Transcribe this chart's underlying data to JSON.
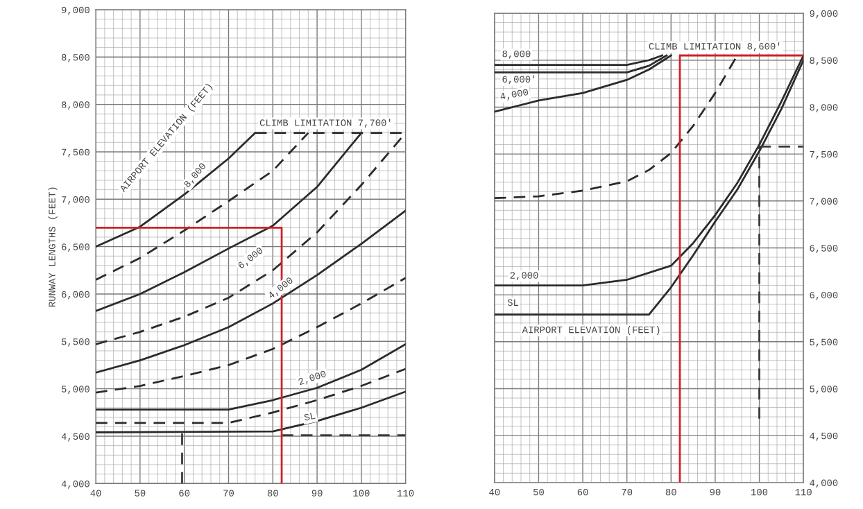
{
  "chart_data": [
    {
      "type": "line",
      "ylabel": "RUNWAY LENGTHS (FEET)",
      "xlim": [
        40,
        110
      ],
      "ylim": [
        4000,
        9000
      ],
      "xticks": [
        40,
        50,
        60,
        70,
        80,
        90,
        100,
        110
      ],
      "yticks": [
        {
          "value": 4000,
          "label": "4,000"
        },
        {
          "value": 4500,
          "label": "4,500"
        },
        {
          "value": 5000,
          "label": "5,000"
        },
        {
          "value": 5500,
          "label": "5,500"
        },
        {
          "value": 6000,
          "label": "6,000"
        },
        {
          "value": 6500,
          "label": "6,500"
        },
        {
          "value": 7000,
          "label": "7,000"
        },
        {
          "value": 7500,
          "label": "7,500"
        },
        {
          "value": 8000,
          "label": "8,000"
        },
        {
          "value": 8500,
          "label": "8,500"
        },
        {
          "value": 9000,
          "label": "9,000"
        }
      ],
      "grid": true,
      "series": [
        {
          "color": "#2b2b2b",
          "line_style": "solid",
          "x": [
            40,
            50,
            60,
            70,
            76
          ],
          "values": [
            6500,
            6710,
            7050,
            7430,
            7700
          ]
        },
        {
          "color": "#2b2b2b",
          "line_style": "dashed",
          "x": [
            76,
            110
          ],
          "values": [
            7700,
            7700
          ]
        },
        {
          "color": "#2b2b2b",
          "line_style": "dashed",
          "x": [
            40,
            50,
            60,
            70,
            80,
            88
          ],
          "values": [
            6150,
            6380,
            6670,
            6980,
            7300,
            7700
          ]
        },
        {
          "color": "#2b2b2b",
          "line_style": "solid",
          "x": [
            40,
            50,
            60,
            70,
            80,
            90,
            100
          ],
          "values": [
            5820,
            6000,
            6230,
            6480,
            6720,
            7130,
            7700
          ]
        },
        {
          "color": "#2b2b2b",
          "line_style": "dashed",
          "x": [
            40,
            50,
            60,
            70,
            80,
            90,
            100,
            110
          ],
          "values": [
            5470,
            5600,
            5760,
            5960,
            6250,
            6650,
            7150,
            7700
          ]
        },
        {
          "color": "#2b2b2b",
          "line_style": "solid",
          "x": [
            40,
            50,
            60,
            70,
            80,
            90,
            100,
            110
          ],
          "values": [
            5170,
            5300,
            5460,
            5650,
            5900,
            6200,
            6530,
            6880
          ]
        },
        {
          "color": "#2b2b2b",
          "line_style": "dashed",
          "x": [
            40,
            50,
            60,
            70,
            80,
            90,
            100,
            110
          ],
          "values": [
            4960,
            5030,
            5135,
            5250,
            5420,
            5650,
            5900,
            6170
          ]
        },
        {
          "color": "#2b2b2b",
          "line_style": "solid",
          "x": [
            40,
            70,
            80,
            90,
            100,
            110
          ],
          "values": [
            4780,
            4780,
            4880,
            5010,
            5200,
            5470
          ]
        },
        {
          "color": "#2b2b2b",
          "line_style": "dashed",
          "x": [
            40,
            70,
            80,
            90,
            100,
            110
          ],
          "values": [
            4640,
            4640,
            4750,
            4880,
            5030,
            5210
          ]
        },
        {
          "color": "#2b2b2b",
          "line_style": "solid",
          "x": [
            40,
            80,
            90,
            100,
            110
          ],
          "values": [
            4540,
            4550,
            4660,
            4800,
            4970
          ]
        },
        {
          "color": "#3a3a3a",
          "line_style": "dashed",
          "x": [
            59.5,
            59.5
          ],
          "values": [
            4000,
            4540
          ]
        },
        {
          "color": "#3a3a3a",
          "line_style": "dashed",
          "x": [
            82,
            110
          ],
          "values": [
            4510,
            4510
          ]
        },
        {
          "color": "#d0202a",
          "line_style": "solid",
          "x": [
            40,
            82,
            82
          ],
          "values": [
            6700,
            6700,
            4000
          ]
        }
      ],
      "annotations": [
        "AIRPORT ELEVATION (FEET)",
        "CLIMB LIMITATION 7,700'",
        "8,000",
        "6,000",
        "4,000",
        "2,000",
        "SL"
      ]
    },
    {
      "type": "line",
      "xlim": [
        40,
        110
      ],
      "ylim": [
        4000,
        9000
      ],
      "xticks": [
        40,
        50,
        60,
        70,
        80,
        90,
        100,
        110
      ],
      "yticks": [
        {
          "value": 4000,
          "label": "4,000"
        },
        {
          "value": 4500,
          "label": "4,500"
        },
        {
          "value": 5000,
          "label": "5,000"
        },
        {
          "value": 5500,
          "label": "5,500"
        },
        {
          "value": 6000,
          "label": "6,000"
        },
        {
          "value": 6500,
          "label": "6,500"
        },
        {
          "value": 7000,
          "label": "7,000"
        },
        {
          "value": 7500,
          "label": "7,500"
        },
        {
          "value": 8000,
          "label": "8,000"
        },
        {
          "value": 8500,
          "label": "8,500"
        },
        {
          "value": 9000,
          "label": "9,000"
        }
      ],
      "grid": true,
      "series": [
        {
          "color": "#2b2b2b",
          "line_style": "solid",
          "x": [
            40,
            70,
            75,
            78
          ],
          "values": [
            8450,
            8450,
            8500,
            8550
          ]
        },
        {
          "color": "#2b2b2b",
          "line_style": "solid",
          "x": [
            40,
            70,
            75,
            79
          ],
          "values": [
            8370,
            8370,
            8440,
            8550
          ]
        },
        {
          "color": "#2b2b2b",
          "line_style": "solid",
          "x": [
            40,
            50,
            60,
            70,
            75,
            80
          ],
          "values": [
            7950,
            8070,
            8150,
            8290,
            8400,
            8550
          ]
        },
        {
          "color": "#2b2b2b",
          "line_style": "dashed",
          "x": [
            40,
            50,
            60,
            70,
            75,
            80,
            85,
            90,
            95
          ],
          "values": [
            7030,
            7050,
            7110,
            7210,
            7330,
            7510,
            7800,
            8150,
            8550
          ]
        },
        {
          "color": "#2b2b2b",
          "line_style": "solid",
          "x": [
            40,
            60,
            70,
            80,
            85,
            90,
            95,
            100,
            105,
            110
          ],
          "values": [
            6100,
            6100,
            6160,
            6310,
            6550,
            6850,
            7190,
            7600,
            8060,
            8550
          ]
        },
        {
          "color": "#2b2b2b",
          "line_style": "solid",
          "x": [
            40,
            75,
            80,
            85,
            90,
            95,
            100,
            105,
            110
          ],
          "values": [
            5790,
            5790,
            6080,
            6420,
            6780,
            7120,
            7530,
            7980,
            8500
          ]
        },
        {
          "color": "#3a3a3a",
          "line_style": "dashed",
          "x": [
            100,
            100
          ],
          "values": [
            4680,
            7580
          ]
        },
        {
          "color": "#3a3a3a",
          "line_style": "dashed",
          "x": [
            100,
            110
          ],
          "values": [
            7580,
            7580
          ]
        },
        {
          "color": "#d0202a",
          "line_style": "solid",
          "x": [
            82,
            82,
            110
          ],
          "values": [
            4000,
            8550,
            8550
          ]
        }
      ],
      "annotations": [
        "CLIMB LIMITATION 8,600'",
        "8,000",
        "6,000'",
        "4,000",
        "2,000",
        "SL",
        "AIRPORT ELEVATION (FEET)"
      ]
    }
  ]
}
